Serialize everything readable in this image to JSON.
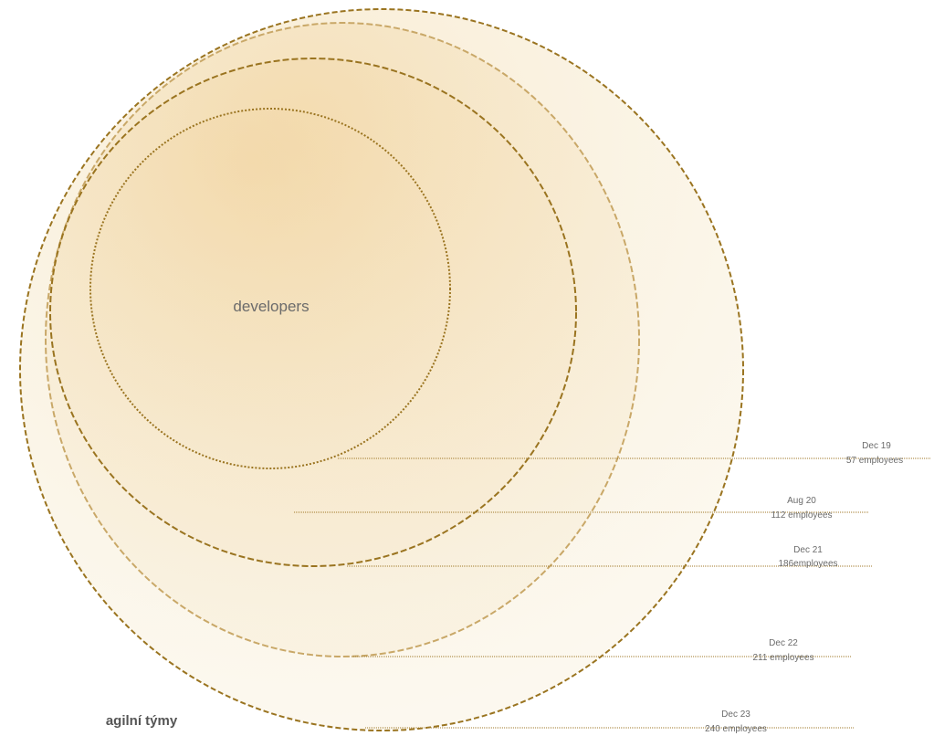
{
  "labels": {
    "inner": "developers",
    "outer": "agilní týmy"
  },
  "milestones": [
    {
      "date": "Dec 19",
      "count": "57 employees"
    },
    {
      "date": "Aug 20",
      "count": "112 employees"
    },
    {
      "date": "Dec 21",
      "count": "186employees"
    },
    {
      "date": "Dec 22",
      "count": "211 employees"
    },
    {
      "date": "Dec 23",
      "count": "240 employees"
    }
  ]
}
